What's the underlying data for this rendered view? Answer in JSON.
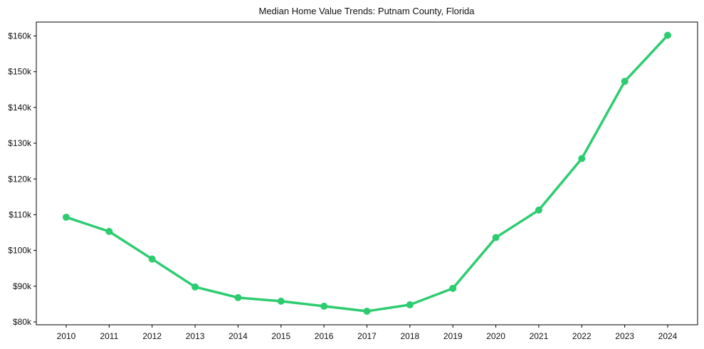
{
  "chart_data": {
    "type": "line",
    "title": "Median Home Value Trends: Putnam County, Florida",
    "xlabel": "",
    "ylabel": "",
    "x": [
      2010,
      2011,
      2012,
      2013,
      2014,
      2015,
      2016,
      2017,
      2018,
      2019,
      2020,
      2021,
      2022,
      2023,
      2024
    ],
    "series": [
      {
        "name": "Median Home Value",
        "color": "#2ecc71",
        "values": [
          109300,
          105300,
          97600,
          89800,
          86800,
          85800,
          84400,
          83000,
          84800,
          89400,
          103600,
          111300,
          125700,
          147300,
          160200
        ]
      }
    ],
    "yticks": [
      80000,
      90000,
      100000,
      110000,
      120000,
      130000,
      140000,
      150000,
      160000
    ],
    "ytick_labels": [
      "$80k",
      "$90k",
      "$100k",
      "$110k",
      "$120k",
      "$130k",
      "$140k",
      "$150k",
      "$160k"
    ],
    "xtick_labels": [
      "2010",
      "2011",
      "2012",
      "2013",
      "2014",
      "2015",
      "2016",
      "2017",
      "2018",
      "2019",
      "2020",
      "2021",
      "2022",
      "2023",
      "2024"
    ],
    "ylim": [
      79100,
      163900
    ],
    "grid": false,
    "legend": null,
    "marker": "circle"
  }
}
